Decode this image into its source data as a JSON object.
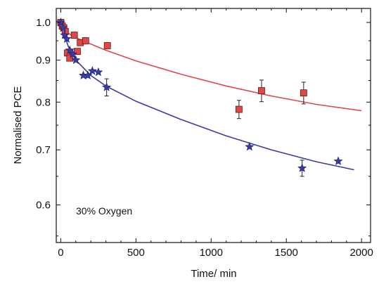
{
  "chart_data": {
    "type": "scatter",
    "title": "",
    "xlabel": "Time/ min",
    "ylabel": "Normalised PCE",
    "xlim": [
      -30,
      2060
    ],
    "ylim": [
      0.54,
      1.04
    ],
    "yscale": "log",
    "xticks": [
      0,
      500,
      1000,
      1500,
      2000
    ],
    "yticks": [
      0.6,
      0.7,
      0.8,
      0.9,
      1.0
    ],
    "ytick_labels": [
      "0.6",
      "0.7",
      "0.8",
      "0.9",
      "1.0"
    ],
    "annotation": "30% Oxygen",
    "grid": false,
    "legend": "none",
    "series": [
      {
        "marker": "square",
        "color": "#e04848",
        "points": [
          {
            "x": 0,
            "y": 1.0
          },
          {
            "x": 10,
            "y": 0.99
          },
          {
            "x": 20,
            "y": 0.985
          },
          {
            "x": 30,
            "y": 0.975
          },
          {
            "x": 45,
            "y": 0.918
          },
          {
            "x": 60,
            "y": 0.905
          },
          {
            "x": 90,
            "y": 0.965
          },
          {
            "x": 110,
            "y": 0.922
          },
          {
            "x": 130,
            "y": 0.945
          },
          {
            "x": 165,
            "y": 0.95
          },
          {
            "x": 310,
            "y": 0.937
          },
          {
            "x": 1185,
            "y": 0.784,
            "err": 0.02
          },
          {
            "x": 1335,
            "y": 0.826,
            "err": 0.025
          },
          {
            "x": 1615,
            "y": 0.821,
            "err": 0.025
          }
        ],
        "fit": {
          "x": [
            0,
            100,
            300,
            500,
            800,
            1100,
            1400,
            1700,
            2000
          ],
          "y": [
            0.983,
            0.958,
            0.925,
            0.898,
            0.865,
            0.837,
            0.814,
            0.795,
            0.781
          ]
        }
      },
      {
        "marker": "star",
        "color": "#3a3aa8",
        "points": [
          {
            "x": 0,
            "y": 1.0
          },
          {
            "x": 15,
            "y": 0.985
          },
          {
            "x": 25,
            "y": 0.965
          },
          {
            "x": 40,
            "y": 0.955
          },
          {
            "x": 60,
            "y": 0.925
          },
          {
            "x": 80,
            "y": 0.915
          },
          {
            "x": 100,
            "y": 0.9
          },
          {
            "x": 150,
            "y": 0.862
          },
          {
            "x": 180,
            "y": 0.862
          },
          {
            "x": 210,
            "y": 0.873
          },
          {
            "x": 250,
            "y": 0.87
          },
          {
            "x": 305,
            "y": 0.834,
            "err": 0.02
          },
          {
            "x": 1255,
            "y": 0.706
          },
          {
            "x": 1605,
            "y": 0.665,
            "err": 0.015
          },
          {
            "x": 1845,
            "y": 0.678
          }
        ],
        "fit": {
          "x": [
            0,
            50,
            100,
            200,
            300,
            500,
            800,
            1100,
            1400,
            1700,
            1950
          ],
          "y": [
            0.997,
            0.935,
            0.9,
            0.862,
            0.837,
            0.802,
            0.762,
            0.728,
            0.7,
            0.677,
            0.662
          ]
        }
      }
    ]
  }
}
